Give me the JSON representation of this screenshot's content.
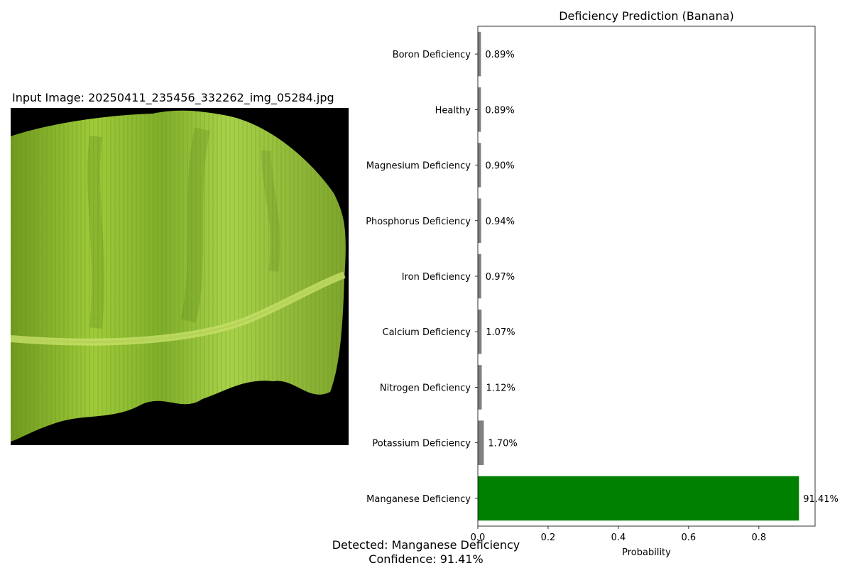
{
  "image_panel": {
    "title": "Input Image: 20250411_235456_332262_img_05284.jpg",
    "image_subject": "banana-leaf"
  },
  "summary": {
    "detected": "Detected: Manganese Deficiency",
    "confidence": "Confidence: 91.41%"
  },
  "chart_data": {
    "type": "bar",
    "orientation": "horizontal",
    "title": "Deficiency Prediction (Banana)",
    "xlabel": "Probability",
    "ylabel": "",
    "xlim": [
      0,
      0.96
    ],
    "xticks": [
      0.0,
      0.2,
      0.4,
      0.6,
      0.8
    ],
    "grid": false,
    "categories": [
      "Boron Deficiency",
      "Healthy",
      "Magnesium Deficiency",
      "Phosphorus Deficiency",
      "Iron Deficiency",
      "Calcium Deficiency",
      "Nitrogen Deficiency",
      "Potassium Deficiency",
      "Manganese Deficiency"
    ],
    "values": [
      0.0089,
      0.0089,
      0.009,
      0.0094,
      0.0097,
      0.0107,
      0.0112,
      0.017,
      0.9141
    ],
    "value_labels": [
      "0.89%",
      "0.89%",
      "0.90%",
      "0.94%",
      "0.97%",
      "1.07%",
      "1.12%",
      "1.70%",
      "91.41%"
    ],
    "colors": [
      "#808080",
      "#808080",
      "#808080",
      "#808080",
      "#808080",
      "#808080",
      "#808080",
      "#808080",
      "#008000"
    ]
  }
}
